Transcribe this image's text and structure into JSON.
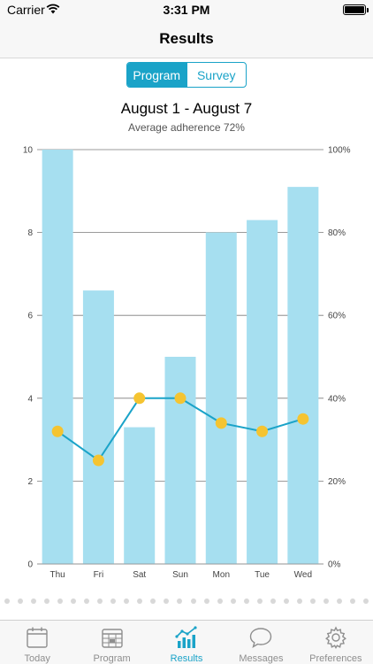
{
  "status_bar": {
    "carrier": "Carrier",
    "time": "3:31 PM"
  },
  "nav": {
    "title": "Results"
  },
  "segments": [
    {
      "label": "Program",
      "active": true
    },
    {
      "label": "Survey",
      "active": false
    }
  ],
  "chart_header": {
    "title": "August 1 - August 7",
    "subtitle": "Average adherence 72%"
  },
  "chart_data": {
    "type": "bar",
    "categories": [
      "Thu",
      "Fri",
      "Sat",
      "Sun",
      "Mon",
      "Tue",
      "Wed"
    ],
    "series": [
      {
        "type": "bar",
        "axis": "left",
        "values": [
          10,
          6.6,
          3.3,
          5,
          8,
          8.3,
          9.1
        ],
        "color": "#a6dff0"
      },
      {
        "type": "line",
        "axis": "right",
        "values": [
          32,
          25,
          40,
          40,
          34,
          32,
          35
        ],
        "color": "#1aa3c8",
        "marker_color": "#f5c431"
      }
    ],
    "y_left": {
      "min": 0,
      "max": 10,
      "ticks": [
        "0",
        "2",
        "4",
        "6",
        "8",
        "10"
      ]
    },
    "y_right": {
      "min": 0,
      "max": 100,
      "ticks": [
        "0%",
        "20%",
        "40%",
        "60%",
        "80%",
        "100%"
      ]
    },
    "grid": true
  },
  "page_indicator": {
    "count": 28
  },
  "tabs": [
    {
      "label": "Today",
      "icon": "calendar-icon",
      "active": false
    },
    {
      "label": "Program",
      "icon": "program-calendar-icon",
      "active": false
    },
    {
      "label": "Results",
      "icon": "chart-icon",
      "active": true
    },
    {
      "label": "Messages",
      "icon": "message-bubble-icon",
      "active": false
    },
    {
      "label": "Preferences",
      "icon": "gear-icon",
      "active": false
    }
  ],
  "colors": {
    "accent": "#1aa3c8",
    "bar": "#a6dff0",
    "marker": "#f5c431",
    "inactive": "#8e8e8e"
  }
}
